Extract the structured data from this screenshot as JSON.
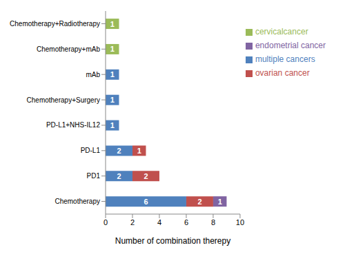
{
  "chart_data": {
    "type": "bar",
    "orientation": "horizontal",
    "stacked": true,
    "data_labels": true,
    "grid": false,
    "legend": "right",
    "x_label": "Number of combination therepy",
    "categories": [
      "Chemotherapy+Radiotherapy",
      "Chemotherapy+mAb",
      "mAb",
      "Chemotherapy+Surgery",
      "PD-L1+NHS-IL12",
      "PD-L1",
      "PD1",
      "Chemotherapy"
    ],
    "xlim": [
      0,
      10
    ],
    "xticks": [
      0,
      2,
      4,
      6,
      8,
      10
    ],
    "series": [
      {
        "name": "multiple cancers",
        "color": "#4f81bd",
        "values": [
          null,
          null,
          1,
          1,
          1,
          2,
          2,
          6
        ]
      },
      {
        "name": "ovarian cancer",
        "color": "#c0504d",
        "values": [
          null,
          null,
          null,
          null,
          null,
          1,
          2,
          2
        ]
      },
      {
        "name": "cervicalcancer",
        "color": "#9bbb59",
        "values": [
          1,
          1,
          null,
          null,
          null,
          null,
          null,
          null
        ]
      },
      {
        "name": "endometrial cancer",
        "color": "#8064a2",
        "values": [
          null,
          null,
          null,
          null,
          null,
          null,
          null,
          1
        ]
      }
    ]
  }
}
